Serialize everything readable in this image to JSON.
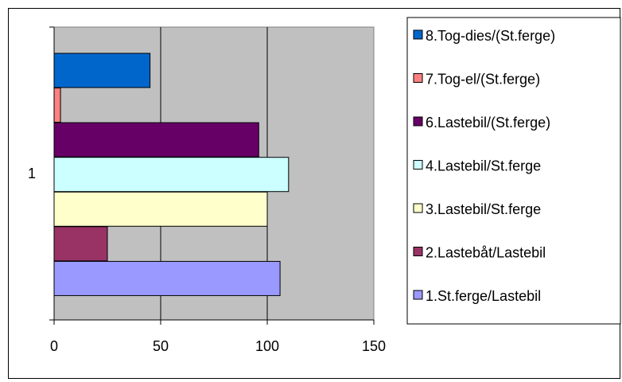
{
  "chart_data": {
    "type": "bar",
    "orientation": "horizontal",
    "categories": [
      "1"
    ],
    "xlim": [
      0,
      150
    ],
    "xticks": [
      "0",
      "50",
      "100",
      "150"
    ],
    "grid": true,
    "legend_position": "right",
    "plot_background": "#c0c0c0",
    "series": [
      {
        "name": "1.St.ferge/Lastebil",
        "values": [
          106
        ],
        "color": "#9999ff"
      },
      {
        "name": "2.Lastebåt/Lastebil",
        "values": [
          25
        ],
        "color": "#993366"
      },
      {
        "name": "3.Lastebil/St.ferge",
        "values": [
          100
        ],
        "color": "#ffffcc"
      },
      {
        "name": "4.Lastebil/St.ferge",
        "values": [
          110
        ],
        "color": "#ccffff"
      },
      {
        "name": "6.Lastebil/(St.ferge)",
        "values": [
          96
        ],
        "color": "#660066"
      },
      {
        "name": "7.Tog-el/(St.ferge)",
        "values": [
          3
        ],
        "color": "#ff8080"
      },
      {
        "name": "8.Tog-dies/(St.ferge)",
        "values": [
          45
        ],
        "color": "#0066cc"
      }
    ]
  }
}
